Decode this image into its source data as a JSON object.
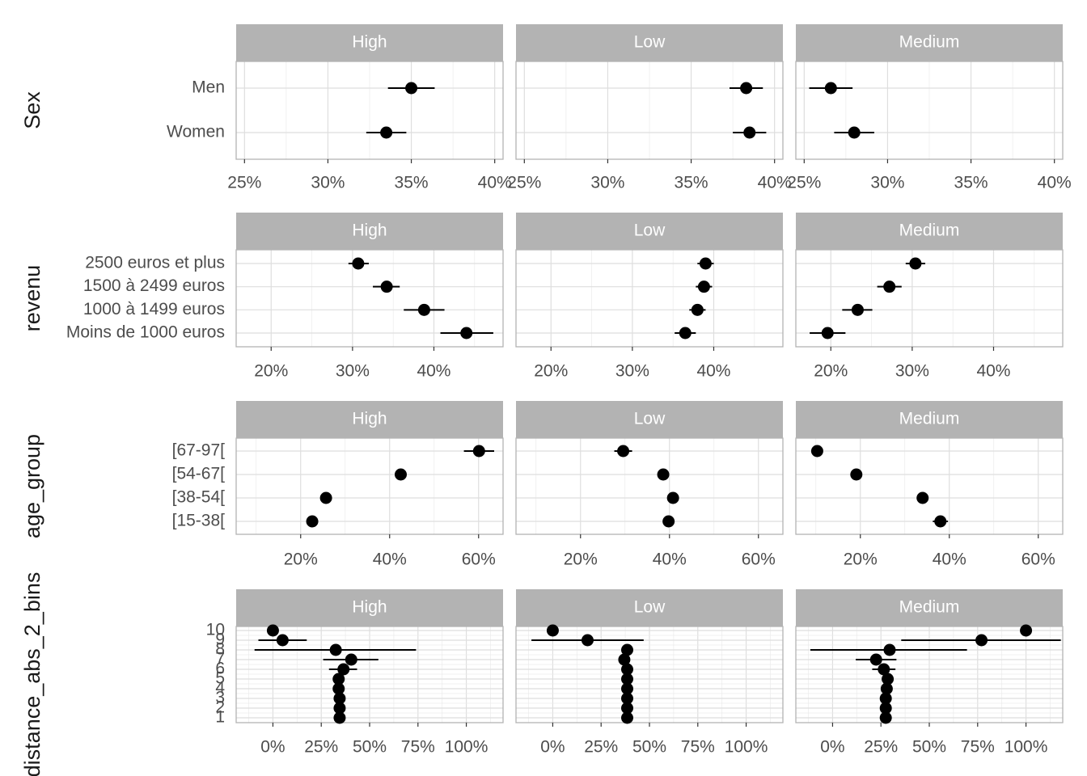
{
  "chart_data": {
    "type": "scatter",
    "style": "faceted point-range (dot with horizontal error bars)",
    "facet_columns": [
      "High",
      "Low",
      "Medium"
    ],
    "strip_color": "#b3b3b3",
    "grid": true,
    "rows": [
      {
        "ylabel": "Sex",
        "categories": [
          "Men",
          "Women"
        ],
        "xlim": [
          24.5,
          40.5
        ],
        "xticks": [
          25,
          30,
          35,
          40
        ],
        "xtick_labels": [
          "25%",
          "30%",
          "35%",
          "40%"
        ],
        "points": {
          "High": [
            {
              "y": "Women",
              "x": 33.5,
              "lo": 32.3,
              "hi": 34.7
            },
            {
              "y": "Men",
              "x": 35.0,
              "lo": 33.6,
              "hi": 36.4
            }
          ],
          "Low": [
            {
              "y": "Women",
              "x": 38.5,
              "lo": 37.5,
              "hi": 39.5
            },
            {
              "y": "Men",
              "x": 38.3,
              "lo": 37.3,
              "hi": 39.3
            }
          ],
          "Medium": [
            {
              "y": "Women",
              "x": 28.0,
              "lo": 26.8,
              "hi": 29.2
            },
            {
              "y": "Men",
              "x": 26.6,
              "lo": 25.3,
              "hi": 27.9
            }
          ]
        }
      },
      {
        "ylabel": "revenu",
        "categories": [
          "Moins de 1000 euros",
          "1000 à 1499 euros",
          "1500 à 2499 euros",
          "2500 euros et plus"
        ],
        "xlim": [
          15.7,
          48.5
        ],
        "xticks": [
          20,
          30,
          40
        ],
        "xtick_labels": [
          "20%",
          "30%",
          "40%"
        ],
        "points": {
          "High": [
            {
              "y": "2500 euros et plus",
              "x": 30.7,
              "lo": 29.5,
              "hi": 32.0
            },
            {
              "y": "1500 à 2499 euros",
              "x": 34.2,
              "lo": 32.5,
              "hi": 35.8
            },
            {
              "y": "1000 à 1499 euros",
              "x": 38.8,
              "lo": 36.3,
              "hi": 41.3
            },
            {
              "y": "Moins de 1000 euros",
              "x": 44.0,
              "lo": 40.8,
              "hi": 47.3
            }
          ],
          "Low": [
            {
              "y": "2500 euros et plus",
              "x": 39.0,
              "lo": 38.0,
              "hi": 40.0
            },
            {
              "y": "1500 à 2499 euros",
              "x": 38.8,
              "lo": 37.8,
              "hi": 39.8
            },
            {
              "y": "1000 à 1499 euros",
              "x": 38.0,
              "lo": 37.0,
              "hi": 39.0
            },
            {
              "y": "Moins de 1000 euros",
              "x": 36.5,
              "lo": 35.2,
              "hi": 37.8
            }
          ],
          "Medium": [
            {
              "y": "2500 euros et plus",
              "x": 30.4,
              "lo": 29.2,
              "hi": 31.6
            },
            {
              "y": "1500 à 2499 euros",
              "x": 27.2,
              "lo": 25.7,
              "hi": 28.7
            },
            {
              "y": "1000 à 1499 euros",
              "x": 23.3,
              "lo": 21.4,
              "hi": 25.1
            },
            {
              "y": "Moins de 1000 euros",
              "x": 19.6,
              "lo": 17.4,
              "hi": 21.8
            }
          ]
        }
      },
      {
        "ylabel": "age_group",
        "categories": [
          "[15-38[",
          "[38-54[",
          "[54-67[",
          "[67-97["
        ],
        "xlim": [
          5.5,
          65.5
        ],
        "xticks": [
          20,
          40,
          60
        ],
        "xtick_labels": [
          "20%",
          "40%",
          "60%"
        ],
        "points": {
          "High": [
            {
              "y": "[67-97[",
              "x": 60.1,
              "lo": 56.7,
              "hi": 63.5
            },
            {
              "y": "[54-67[",
              "x": 42.5,
              "lo": 42.5,
              "hi": 42.5
            },
            {
              "y": "[38-54[",
              "x": 25.7,
              "lo": 25.7,
              "hi": 25.7
            },
            {
              "y": "[15-38[",
              "x": 22.6,
              "lo": 22.6,
              "hi": 22.6
            }
          ],
          "Low": [
            {
              "y": "[67-97[",
              "x": 29.6,
              "lo": 27.6,
              "hi": 31.6
            },
            {
              "y": "[54-67[",
              "x": 38.6,
              "lo": 38.6,
              "hi": 38.6
            },
            {
              "y": "[38-54[",
              "x": 40.8,
              "lo": 40.8,
              "hi": 40.8
            },
            {
              "y": "[15-38[",
              "x": 39.8,
              "lo": 39.8,
              "hi": 39.8
            }
          ],
          "Medium": [
            {
              "y": "[67-97[",
              "x": 10.3,
              "lo": 10.3,
              "hi": 10.3
            },
            {
              "y": "[54-67[",
              "x": 19.1,
              "lo": 19.1,
              "hi": 19.1
            },
            {
              "y": "[38-54[",
              "x": 34.0,
              "lo": 34.0,
              "hi": 34.0
            },
            {
              "y": "[15-38[",
              "x": 38.0,
              "lo": 36.3,
              "hi": 39.7
            }
          ]
        }
      },
      {
        "ylabel": "distance_abs_2_bins",
        "categories": [
          "1",
          "2",
          "3",
          "4",
          "5",
          "6",
          "7",
          "8",
          "9",
          "10"
        ],
        "xlim": [
          -19,
          119
        ],
        "xticks": [
          0,
          25,
          50,
          75,
          100
        ],
        "xtick_labels": [
          "0%",
          "25%",
          "50%",
          "75%",
          "100%"
        ],
        "points": {
          "High": [
            {
              "y": "10",
              "x": 0.0,
              "lo": 0.0,
              "hi": 0.0
            },
            {
              "y": "9",
              "x": 5.0,
              "lo": -7.5,
              "hi": 17.5
            },
            {
              "y": "8",
              "x": 32.5,
              "lo": -9.5,
              "hi": 74.0
            },
            {
              "y": "7",
              "x": 40.5,
              "lo": 26.0,
              "hi": 54.5
            },
            {
              "y": "6",
              "x": 36.5,
              "lo": 29.0,
              "hi": 43.5
            },
            {
              "y": "5",
              "x": 34.0,
              "lo": 34.0,
              "hi": 34.0
            },
            {
              "y": "4",
              "x": 34.0,
              "lo": 34.0,
              "hi": 34.0
            },
            {
              "y": "3",
              "x": 34.5,
              "lo": 34.5,
              "hi": 34.5
            },
            {
              "y": "2",
              "x": 34.5,
              "lo": 34.5,
              "hi": 34.5
            },
            {
              "y": "1",
              "x": 34.5,
              "lo": 34.5,
              "hi": 34.5
            }
          ],
          "Low": [
            {
              "y": "10",
              "x": 0.0,
              "lo": 0.0,
              "hi": 0.0
            },
            {
              "y": "9",
              "x": 18.0,
              "lo": -11.0,
              "hi": 47.0
            },
            {
              "y": "8",
              "x": 38.5,
              "lo": 38.5,
              "hi": 38.5
            },
            {
              "y": "7",
              "x": 37.0,
              "lo": 37.0,
              "hi": 37.0
            },
            {
              "y": "6",
              "x": 38.5,
              "lo": 38.5,
              "hi": 38.5
            },
            {
              "y": "5",
              "x": 38.5,
              "lo": 38.5,
              "hi": 38.5
            },
            {
              "y": "4",
              "x": 38.5,
              "lo": 38.5,
              "hi": 38.5
            },
            {
              "y": "3",
              "x": 38.5,
              "lo": 38.5,
              "hi": 38.5
            },
            {
              "y": "2",
              "x": 38.5,
              "lo": 38.5,
              "hi": 38.5
            },
            {
              "y": "1",
              "x": 38.5,
              "lo": 38.5,
              "hi": 38.5
            }
          ],
          "Medium": [
            {
              "y": "10",
              "x": 100.0,
              "lo": 100.0,
              "hi": 100.0
            },
            {
              "y": "9",
              "x": 77.0,
              "lo": 35.5,
              "hi": 118.0
            },
            {
              "y": "8",
              "x": 29.5,
              "lo": -11.5,
              "hi": 69.5
            },
            {
              "y": "7",
              "x": 22.5,
              "lo": 12.0,
              "hi": 33.0
            },
            {
              "y": "6",
              "x": 26.5,
              "lo": 20.5,
              "hi": 32.5
            },
            {
              "y": "5",
              "x": 28.5,
              "lo": 28.5,
              "hi": 28.5
            },
            {
              "y": "4",
              "x": 28.0,
              "lo": 28.0,
              "hi": 28.0
            },
            {
              "y": "3",
              "x": 27.5,
              "lo": 27.5,
              "hi": 27.5
            },
            {
              "y": "2",
              "x": 27.5,
              "lo": 27.5,
              "hi": 27.5
            },
            {
              "y": "1",
              "x": 27.5,
              "lo": 27.5,
              "hi": 27.5
            }
          ]
        }
      }
    ]
  }
}
